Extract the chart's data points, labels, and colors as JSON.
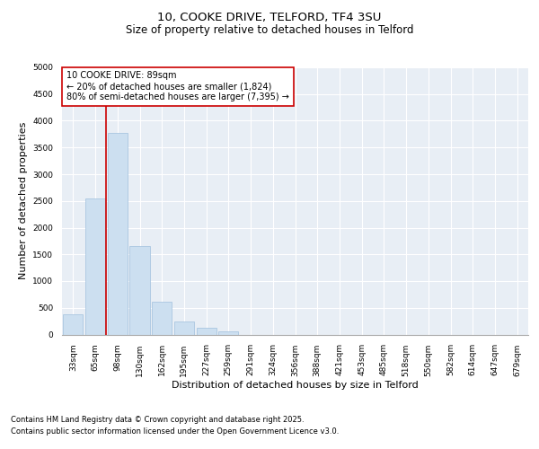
{
  "title1": "10, COOKE DRIVE, TELFORD, TF4 3SU",
  "title2": "Size of property relative to detached houses in Telford",
  "xlabel": "Distribution of detached houses by size in Telford",
  "ylabel": "Number of detached properties",
  "categories": [
    "33sqm",
    "65sqm",
    "98sqm",
    "130sqm",
    "162sqm",
    "195sqm",
    "227sqm",
    "259sqm",
    "291sqm",
    "324sqm",
    "356sqm",
    "388sqm",
    "421sqm",
    "453sqm",
    "485sqm",
    "518sqm",
    "550sqm",
    "582sqm",
    "614sqm",
    "647sqm",
    "679sqm"
  ],
  "values": [
    380,
    2550,
    3780,
    1650,
    620,
    250,
    120,
    55,
    0,
    0,
    0,
    0,
    0,
    0,
    0,
    0,
    0,
    0,
    0,
    0,
    0
  ],
  "bar_color": "#ccdff0",
  "bar_edge_color": "#a0c0dd",
  "vline_x_index": 2.0,
  "vline_color": "#cc0000",
  "annotation_text": "10 COOKE DRIVE: 89sqm\n← 20% of detached houses are smaller (1,824)\n80% of semi-detached houses are larger (7,395) →",
  "annotation_box_color": "#ffffff",
  "annotation_box_edge": "#cc0000",
  "ylim": [
    0,
    5000
  ],
  "yticks": [
    0,
    500,
    1000,
    1500,
    2000,
    2500,
    3000,
    3500,
    4000,
    4500,
    5000
  ],
  "fig_bg_color": "#ffffff",
  "plot_bg_color": "#e8eef5",
  "grid_color": "#ffffff",
  "footer_line1": "Contains HM Land Registry data © Crown copyright and database right 2025.",
  "footer_line2": "Contains public sector information licensed under the Open Government Licence v3.0.",
  "title_fontsize": 9.5,
  "subtitle_fontsize": 8.5,
  "axis_label_fontsize": 8,
  "tick_fontsize": 6.5,
  "annotation_fontsize": 7,
  "footer_fontsize": 6
}
